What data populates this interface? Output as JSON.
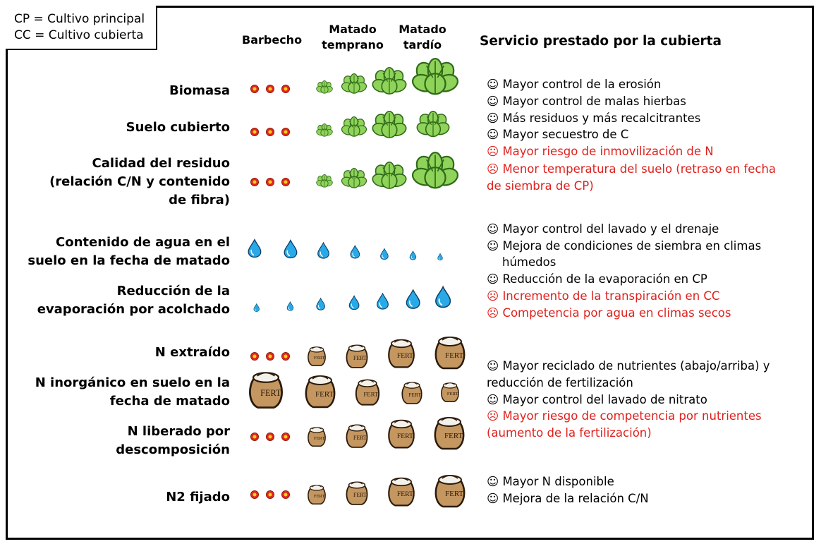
{
  "legend": {
    "cp": "CP = Cultivo principal",
    "cc": "CC = Cultivo cubierta"
  },
  "columns": {
    "fallow": "Barbecho",
    "early_1": "Matado",
    "early_2": "temprano",
    "late_1": "Matado",
    "late_2": "tardío"
  },
  "service_header": "Servicio prestado por la cubierta",
  "rows": {
    "biomass": "Biomasa",
    "soil_cover": "Suelo cubierto",
    "residue_1": "Calidad del residuo",
    "residue_2": "(relación C/N y contenido",
    "residue_3": "de fibra)",
    "water_1": "Contenido de agua en el",
    "water_2": "suelo en la fecha de matado",
    "evap_1": "Reducción de la",
    "evap_2": "evaporación por acolchado",
    "n_extracted": "N extraído",
    "n_inorg_1": "N inorgánico en suelo en la",
    "n_inorg_2": "fecha de matado",
    "n_released_1": "N liberado por",
    "n_released_2": "descomposición",
    "n2_fixed": "N2 fijado"
  },
  "services": {
    "group1": [
      {
        "text": "☺ Mayor control de la erosión",
        "tone": "positive"
      },
      {
        "text": "☺ Mayor control de malas hierbas",
        "tone": "positive"
      },
      {
        "text": "☺ Más residuos y más recalcitrantes",
        "tone": "positive"
      },
      {
        "text": "☺ Mayor secuestro de C",
        "tone": "positive"
      },
      {
        "text": "☹ Mayor riesgo de inmovilización de N",
        "tone": "negative"
      },
      {
        "text": "☹ Menor temperatura del suelo (retraso en fecha",
        "tone": "negative"
      },
      {
        "text": "de siembra de CP)",
        "tone": "negative"
      }
    ],
    "group2": [
      {
        "text": "☺ Mayor control del lavado y el drenaje",
        "tone": "positive"
      },
      {
        "text": "☺  Mejora de condiciones de siembra en climas",
        "tone": "positive"
      },
      {
        "text": "húmedos",
        "tone": "positive"
      },
      {
        "text": "☺ Reducción de  la evaporación en CP",
        "tone": "positive"
      },
      {
        "text": "☹ Incremento de la transpiración en CC",
        "tone": "negative"
      },
      {
        "text": "☹ Competencia por agua en climas secos",
        "tone": "negative"
      }
    ],
    "group3": [
      {
        "text": "☺ Mayor reciclado de nutrientes (abajo/arriba) y",
        "tone": "positive"
      },
      {
        "text": "reducción de fertilización",
        "tone": "positive"
      },
      {
        "text": "☺ Mayor control del lavado de nitrato",
        "tone": "positive"
      },
      {
        "text": "☹ Mayor riesgo de competencia por nutrientes",
        "tone": "negative"
      },
      {
        "text": "(aumento de la fertilización)",
        "tone": "negative"
      }
    ],
    "group4": [
      {
        "text": "☺ Mayor N disponible",
        "tone": "positive"
      },
      {
        "text": "☺ Mejora de la relación C/N",
        "tone": "positive"
      }
    ]
  },
  "icon_label": "FERT.",
  "colors": {
    "positive_text": "#000000",
    "negative_text": "#e0201c",
    "leaf": "#8fd35a",
    "leaf_dark": "#2f6a18",
    "water": "#29a9e8",
    "sack": "#c49660",
    "dot": "#e3261b",
    "dot_center": "#f6d21a"
  },
  "icons": {
    "neutral": "dot-icon",
    "cover_crop": "leaf-cluster-icon",
    "water": "water-drop-icon",
    "nitrogen": "fertilizer-sack-icon"
  }
}
